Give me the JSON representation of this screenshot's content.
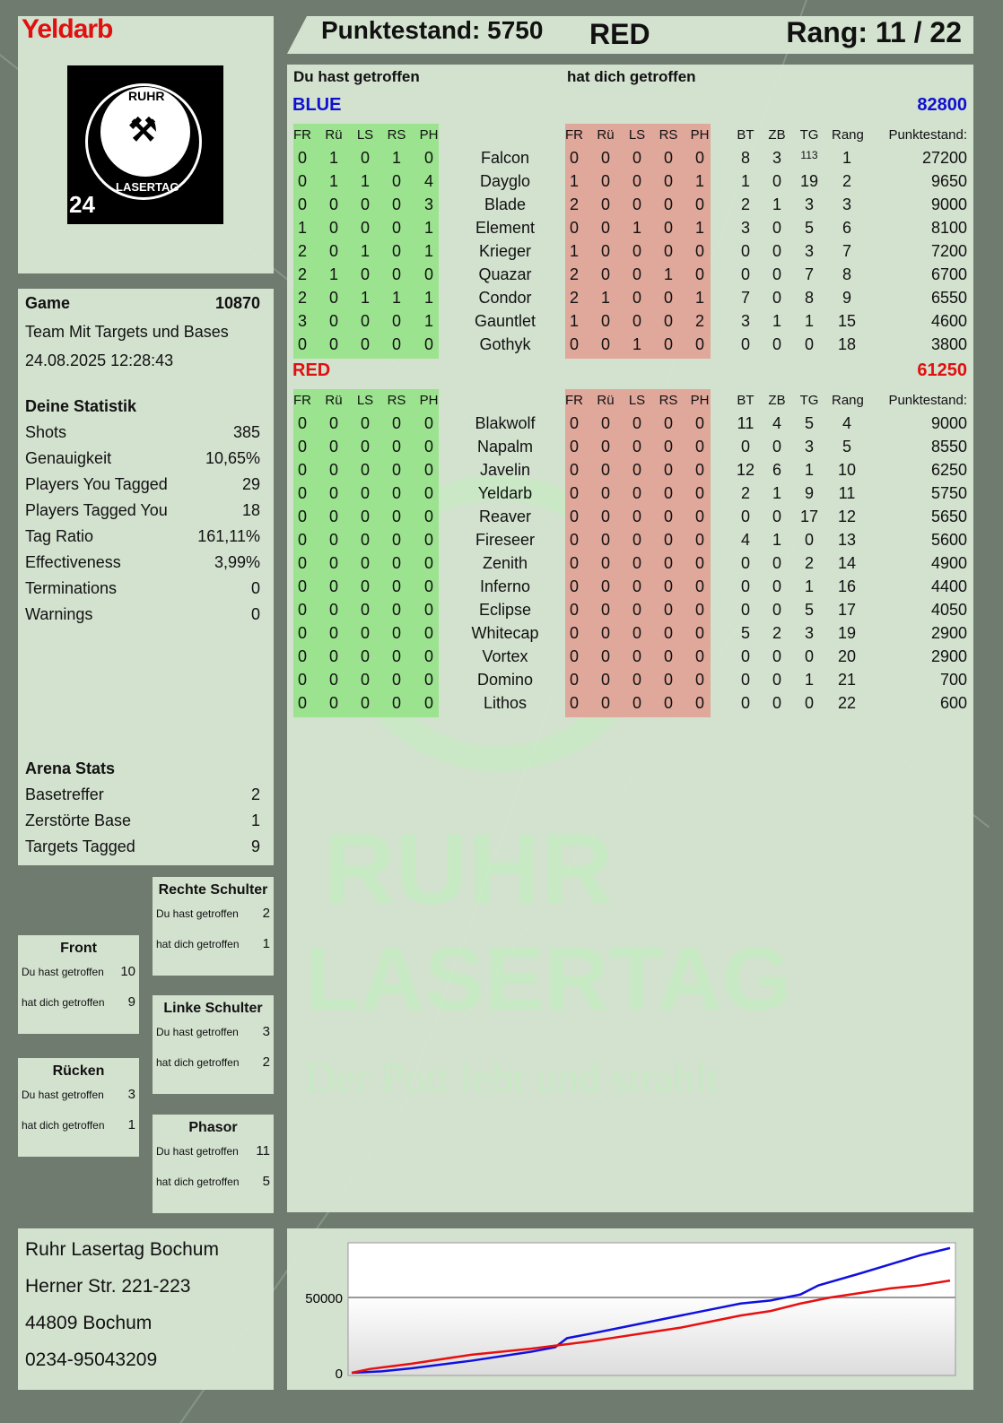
{
  "player": {
    "name": "Yeldarb",
    "score_label": "Punktestand: 5750",
    "team": "RED",
    "rank_label": "Rang: 11 / 22"
  },
  "logo": {
    "top": "RUHR",
    "bottom": "LASERTAG",
    "badge": "24"
  },
  "watermark": {
    "line1": "RUHR",
    "line2": "LASERTAG",
    "slogan": "Der Pott lebt und strahlt"
  },
  "game": {
    "label": "Game",
    "id": "10870",
    "mode": "Team Mit Targets und Bases",
    "datetime": "24.08.2025 12:28:43"
  },
  "stats": {
    "title": "Deine Statistik",
    "items": [
      {
        "label": "Shots",
        "value": "385"
      },
      {
        "label": "Genauigkeit",
        "value": "10,65%"
      },
      {
        "label": "Players You Tagged",
        "value": "29"
      },
      {
        "label": "Players Tagged You",
        "value": "18"
      },
      {
        "label": "Tag Ratio",
        "value": "161,11%"
      },
      {
        "label": "Effectiveness",
        "value": "3,99%"
      },
      {
        "label": "Terminations",
        "value": "0"
      },
      {
        "label": "Warnings",
        "value": "0"
      }
    ]
  },
  "arena": {
    "title": "Arena Stats",
    "items": [
      {
        "label": "Basetreffer",
        "value": "2"
      },
      {
        "label": "Zerstörte Base",
        "value": "1"
      },
      {
        "label": "Targets Tagged",
        "value": "9"
      }
    ]
  },
  "hits": {
    "you_hit": "Du hast getroffen",
    "hit_you": "hat dich getroffen",
    "zones": [
      {
        "name": "Front",
        "you": "10",
        "them": "9"
      },
      {
        "name": "Rechte Schulter",
        "you": "2",
        "them": "1"
      },
      {
        "name": "Linke Schulter",
        "you": "3",
        "them": "2"
      },
      {
        "name": "Rücken",
        "you": "3",
        "them": "1"
      },
      {
        "name": "Phasor",
        "you": "11",
        "them": "5"
      }
    ]
  },
  "address": {
    "lines": [
      "Ruhr Lasertag Bochum",
      "Herner Str. 221-223",
      "44809 Bochum",
      "0234-95043209"
    ]
  },
  "table": {
    "you_hit": "Du hast getroffen",
    "hit_you": "hat dich getroffen",
    "columns": [
      "FR",
      "Rü",
      "LS",
      "RS",
      "PH",
      "FR",
      "Rü",
      "LS",
      "RS",
      "PH",
      "BT",
      "ZB",
      "TG",
      "Rang",
      "Punktestand:"
    ],
    "teams": [
      {
        "name": "BLUE",
        "total": "82800",
        "color": "#1010d0",
        "players": [
          [
            "0",
            "1",
            "0",
            "1",
            "0",
            "Falcon",
            "0",
            "0",
            "0",
            "0",
            "0",
            "8",
            "3",
            "113",
            "1",
            "27200"
          ],
          [
            "0",
            "1",
            "1",
            "0",
            "4",
            "Dayglo",
            "1",
            "0",
            "0",
            "0",
            "1",
            "1",
            "0",
            "19",
            "2",
            "9650"
          ],
          [
            "0",
            "0",
            "0",
            "0",
            "3",
            "Blade",
            "2",
            "0",
            "0",
            "0",
            "0",
            "2",
            "1",
            "3",
            "3",
            "9000"
          ],
          [
            "1",
            "0",
            "0",
            "0",
            "1",
            "Element",
            "0",
            "0",
            "1",
            "0",
            "1",
            "3",
            "0",
            "5",
            "6",
            "8100"
          ],
          [
            "2",
            "0",
            "1",
            "0",
            "1",
            "Krieger",
            "1",
            "0",
            "0",
            "0",
            "0",
            "0",
            "0",
            "3",
            "7",
            "7200"
          ],
          [
            "2",
            "1",
            "0",
            "0",
            "0",
            "Quazar",
            "2",
            "0",
            "0",
            "1",
            "0",
            "0",
            "0",
            "7",
            "8",
            "6700"
          ],
          [
            "2",
            "0",
            "1",
            "1",
            "1",
            "Condor",
            "2",
            "1",
            "0",
            "0",
            "1",
            "7",
            "0",
            "8",
            "9",
            "6550"
          ],
          [
            "3",
            "0",
            "0",
            "0",
            "1",
            "Gauntlet",
            "1",
            "0",
            "0",
            "0",
            "2",
            "3",
            "1",
            "1",
            "15",
            "4600"
          ],
          [
            "0",
            "0",
            "0",
            "0",
            "0",
            "Gothyk",
            "0",
            "0",
            "1",
            "0",
            "0",
            "0",
            "0",
            "0",
            "18",
            "3800"
          ]
        ]
      },
      {
        "name": "RED",
        "total": "61250",
        "color": "#e01010",
        "players": [
          [
            "0",
            "0",
            "0",
            "0",
            "0",
            "Blakwolf",
            "0",
            "0",
            "0",
            "0",
            "0",
            "11",
            "4",
            "5",
            "4",
            "9000"
          ],
          [
            "0",
            "0",
            "0",
            "0",
            "0",
            "Napalm",
            "0",
            "0",
            "0",
            "0",
            "0",
            "0",
            "0",
            "3",
            "5",
            "8550"
          ],
          [
            "0",
            "0",
            "0",
            "0",
            "0",
            "Javelin",
            "0",
            "0",
            "0",
            "0",
            "0",
            "12",
            "6",
            "1",
            "10",
            "6250"
          ],
          [
            "0",
            "0",
            "0",
            "0",
            "0",
            "Yeldarb",
            "0",
            "0",
            "0",
            "0",
            "0",
            "2",
            "1",
            "9",
            "11",
            "5750"
          ],
          [
            "0",
            "0",
            "0",
            "0",
            "0",
            "Reaver",
            "0",
            "0",
            "0",
            "0",
            "0",
            "0",
            "0",
            "17",
            "12",
            "5650"
          ],
          [
            "0",
            "0",
            "0",
            "0",
            "0",
            "Fireseer",
            "0",
            "0",
            "0",
            "0",
            "0",
            "4",
            "1",
            "0",
            "13",
            "5600"
          ],
          [
            "0",
            "0",
            "0",
            "0",
            "0",
            "Zenith",
            "0",
            "0",
            "0",
            "0",
            "0",
            "0",
            "0",
            "2",
            "14",
            "4900"
          ],
          [
            "0",
            "0",
            "0",
            "0",
            "0",
            "Inferno",
            "0",
            "0",
            "0",
            "0",
            "0",
            "0",
            "0",
            "1",
            "16",
            "4400"
          ],
          [
            "0",
            "0",
            "0",
            "0",
            "0",
            "Eclipse",
            "0",
            "0",
            "0",
            "0",
            "0",
            "0",
            "0",
            "5",
            "17",
            "4050"
          ],
          [
            "0",
            "0",
            "0",
            "0",
            "0",
            "Whitecap",
            "0",
            "0",
            "0",
            "0",
            "0",
            "5",
            "2",
            "3",
            "19",
            "2900"
          ],
          [
            "0",
            "0",
            "0",
            "0",
            "0",
            "Vortex",
            "0",
            "0",
            "0",
            "0",
            "0",
            "0",
            "0",
            "0",
            "20",
            "2900"
          ],
          [
            "0",
            "0",
            "0",
            "0",
            "0",
            "Domino",
            "0",
            "0",
            "0",
            "0",
            "0",
            "0",
            "0",
            "1",
            "21",
            "700"
          ],
          [
            "0",
            "0",
            "0",
            "0",
            "0",
            "Lithos",
            "0",
            "0",
            "0",
            "0",
            "0",
            "0",
            "0",
            "0",
            "22",
            "600"
          ]
        ]
      }
    ]
  },
  "chart_data": {
    "type": "line",
    "ylim": [
      0,
      85000
    ],
    "xlim": [
      0,
      100
    ],
    "yticks": [
      "0",
      "50000"
    ],
    "grid": true,
    "series": [
      {
        "color": "#1010e0",
        "x": [
          0,
          5,
          10,
          20,
          30,
          34,
          36,
          40,
          45,
          50,
          55,
          60,
          65,
          70,
          75,
          78,
          85,
          90,
          95,
          100
        ],
        "y": [
          0,
          1000,
          3000,
          8000,
          14000,
          17000,
          23000,
          26000,
          30000,
          34000,
          38000,
          42000,
          46000,
          48000,
          52000,
          58000,
          66000,
          72000,
          78000,
          82800
        ]
      },
      {
        "color": "#e81010",
        "x": [
          0,
          3,
          10,
          20,
          30,
          34,
          40,
          45,
          50,
          55,
          60,
          65,
          70,
          75,
          80,
          85,
          90,
          95,
          100
        ],
        "y": [
          0,
          2500,
          6000,
          12000,
          16000,
          18000,
          21000,
          24000,
          27000,
          30000,
          34000,
          38000,
          41000,
          46000,
          50000,
          53000,
          56000,
          58000,
          61250
        ]
      }
    ]
  }
}
